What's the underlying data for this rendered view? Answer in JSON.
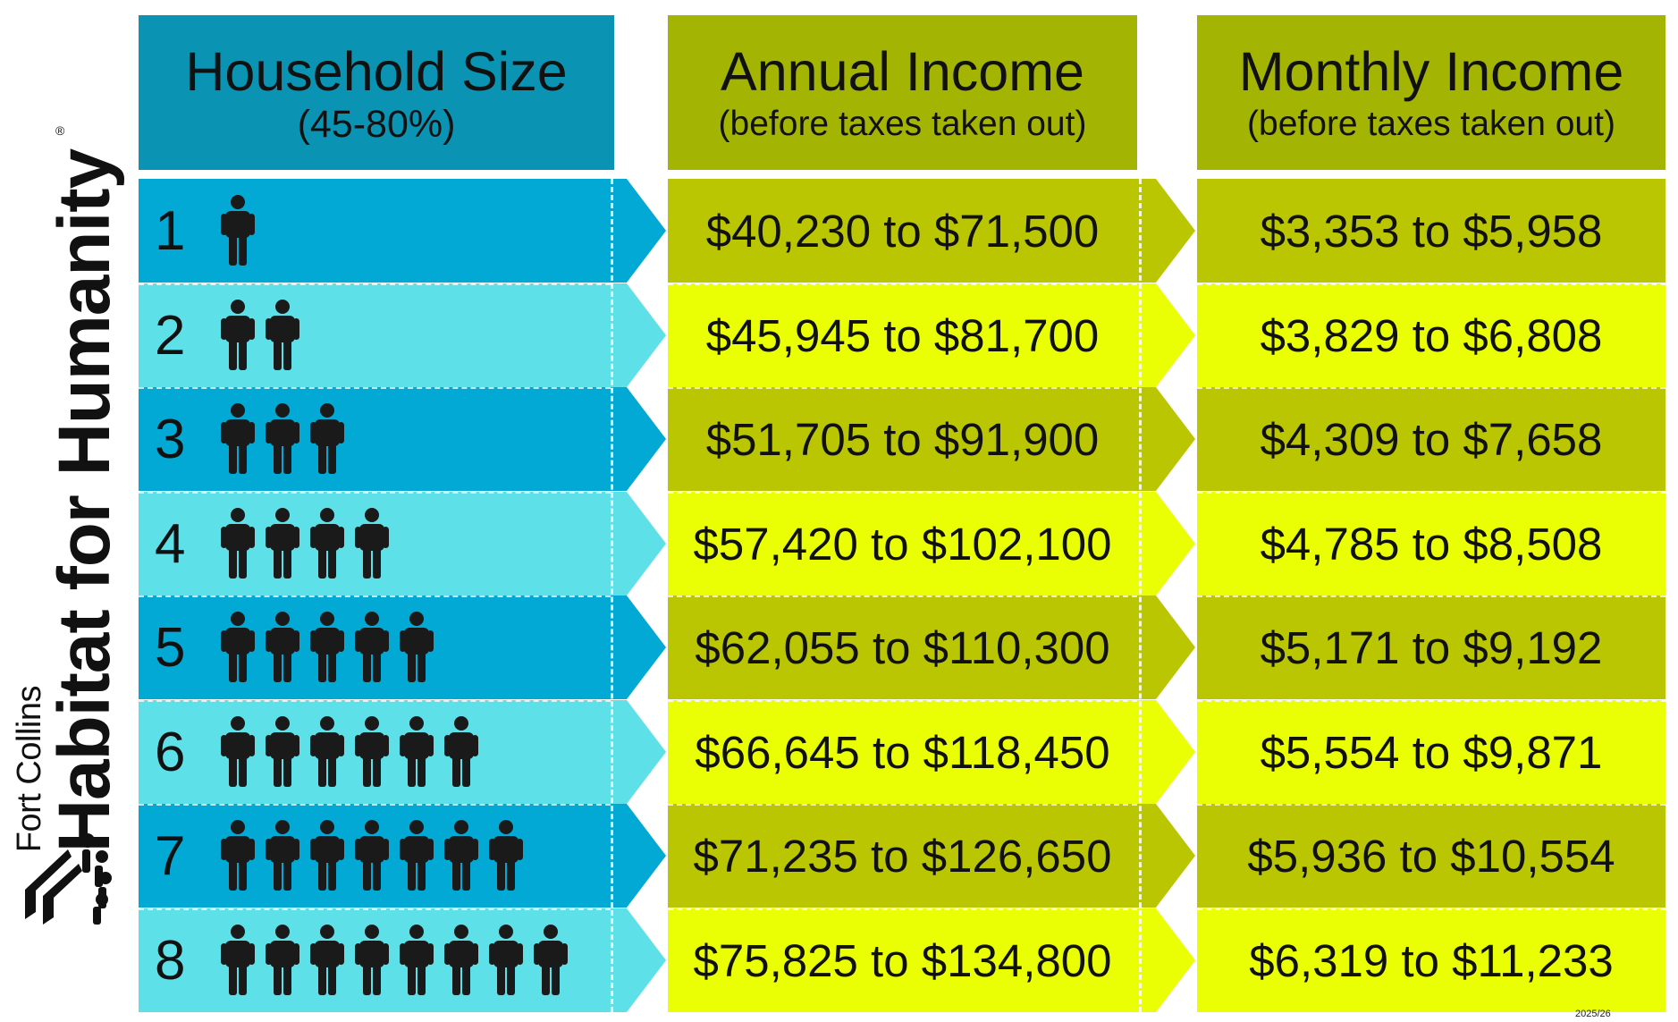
{
  "brand": {
    "city": "Fort Collins",
    "organization": "Habitat for Humanity",
    "registered_mark": "®",
    "logo_icon": "habitat-houses-people-logo"
  },
  "headers": {
    "household_size": {
      "title": "Household Size",
      "subtitle": "(45-80%)"
    },
    "annual_income": {
      "title": "Annual Income",
      "subtitle": "(before taxes taken out)"
    },
    "monthly_income": {
      "title": "Monthly Income",
      "subtitle": "(before taxes taken out)"
    }
  },
  "rows": [
    {
      "size": "1",
      "people": 1,
      "annual": "$40,230 to $71,500",
      "monthly": "$3,353 to $5,958"
    },
    {
      "size": "2",
      "people": 2,
      "annual": "$45,945 to $81,700",
      "monthly": "$3,829 to $6,808"
    },
    {
      "size": "3",
      "people": 3,
      "annual": "$51,705 to $91,900",
      "monthly": "$4,309 to $7,658"
    },
    {
      "size": "4",
      "people": 4,
      "annual": "$57,420 to $102,100",
      "monthly": "$4,785 to $8,508"
    },
    {
      "size": "5",
      "people": 5,
      "annual": "$62,055 to $110,300",
      "monthly": "$5,171 to $9,192"
    },
    {
      "size": "6",
      "people": 6,
      "annual": "$66,645 to $118,450",
      "monthly": "$5,554 to $9,871"
    },
    {
      "size": "7",
      "people": 7,
      "annual": "$71,235 to $126,650",
      "monthly": "$5,936 to $10,554"
    },
    {
      "size": "8",
      "people": 8,
      "annual": "$75,825 to $134,800",
      "monthly": "$6,319 to $11,233"
    }
  ],
  "colors": {
    "blue_dark": "#01a9d4",
    "blue_light": "#5ee0e8",
    "blue_header": "#0a93b2",
    "olive_dark": "#bac602",
    "lime_light": "#eaff04",
    "olive_header": "#a4b403",
    "person_icon": "#1a1a1a"
  },
  "person_icon": "person-icon",
  "footer": {
    "year_code": "2025/26"
  }
}
